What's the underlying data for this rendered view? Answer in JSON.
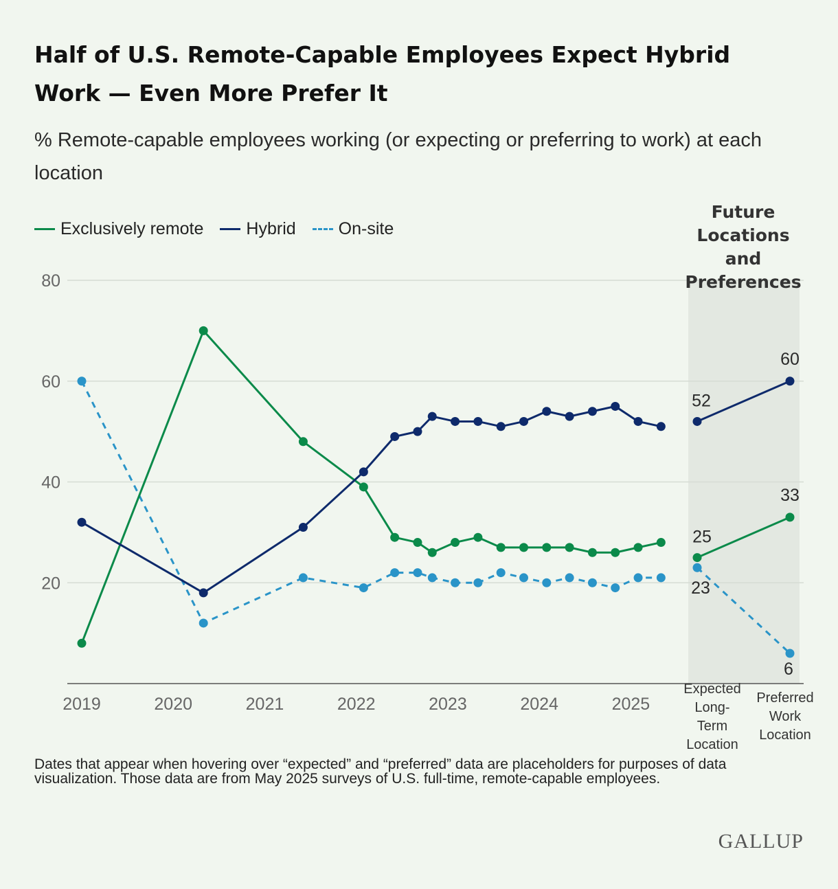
{
  "title_line1": "Half of U.S. Remote-Capable Employees Expect Hybrid",
  "title_line2": "Work — Even More Prefer It",
  "subtitle": "% Remote-capable employees working (or expecting or preferring to work) at each location",
  "colors": {
    "remote": "#0b8a4a",
    "hybrid": "#0e2a6b",
    "onsite": "#2a94c8",
    "grid": "#d6dcd4",
    "panel": "#e3e8e1",
    "axis": "#555555",
    "tick_text": "#666666",
    "background": "#f1f6ef"
  },
  "chart_data": {
    "type": "line",
    "title": "Half of U.S. Remote-Capable Employees Expect Hybrid Work — Even More Prefer It",
    "ylim": [
      0,
      80
    ],
    "y_ticks": [
      20,
      40,
      60,
      80
    ],
    "y_grid": true,
    "x_ticks": [
      2019,
      2020,
      2021,
      2022,
      2023,
      2024,
      2025
    ],
    "xlim": [
      2019.0,
      2025.5
    ],
    "legend_position": "top-left",
    "series": [
      {
        "name": "Exclusively remote",
        "key": "remote",
        "style": "solid",
        "x": [
          2019.0,
          2020.33,
          2021.42,
          2022.08,
          2022.42,
          2022.67,
          2022.83,
          2023.08,
          2023.33,
          2023.58,
          2023.83,
          2024.08,
          2024.33,
          2024.58,
          2024.83,
          2025.08,
          2025.33
        ],
        "values": [
          8,
          70,
          48,
          39,
          29,
          28,
          26,
          28,
          29,
          27,
          27,
          27,
          27,
          26,
          26,
          27,
          28
        ],
        "future": [
          25,
          33
        ]
      },
      {
        "name": "Hybrid",
        "key": "hybrid",
        "style": "solid",
        "x": [
          2019.0,
          2020.33,
          2021.42,
          2022.08,
          2022.42,
          2022.67,
          2022.83,
          2023.08,
          2023.33,
          2023.58,
          2023.83,
          2024.08,
          2024.33,
          2024.58,
          2024.83,
          2025.08,
          2025.33
        ],
        "values": [
          32,
          18,
          31,
          42,
          49,
          50,
          53,
          52,
          52,
          51,
          52,
          54,
          53,
          54,
          55,
          52,
          51
        ],
        "future": [
          52,
          60
        ]
      },
      {
        "name": "On-site",
        "key": "onsite",
        "style": "dashed",
        "x": [
          2019.0,
          2020.33,
          2021.42,
          2022.08,
          2022.42,
          2022.67,
          2022.83,
          2023.08,
          2023.33,
          2023.58,
          2023.83,
          2024.08,
          2024.33,
          2024.58,
          2024.83,
          2025.08,
          2025.33
        ],
        "values": [
          60,
          12,
          21,
          19,
          22,
          22,
          21,
          20,
          20,
          22,
          21,
          20,
          21,
          20,
          19,
          21,
          21
        ],
        "future": [
          23,
          6
        ]
      }
    ],
    "future_panel": {
      "title_lines": [
        "Future",
        "Locations",
        "and",
        "Preferences"
      ],
      "categories": [
        {
          "lines": [
            "Expected",
            "Long-",
            "Term",
            "Location"
          ]
        },
        {
          "lines": [
            "Preferred",
            "Work",
            "Location"
          ]
        }
      ],
      "labels": {
        "hybrid": [
          "52",
          "60"
        ],
        "remote": [
          "25",
          "33"
        ],
        "onsite": [
          "23",
          "6"
        ]
      }
    }
  },
  "footnote": "Dates that appear when hovering over “expected” and “preferred” data are placeholders for purposes of data visualization. Those data are from May 2025 surveys of U.S. full-time, remote-capable employees.",
  "brand": "GALLUP"
}
